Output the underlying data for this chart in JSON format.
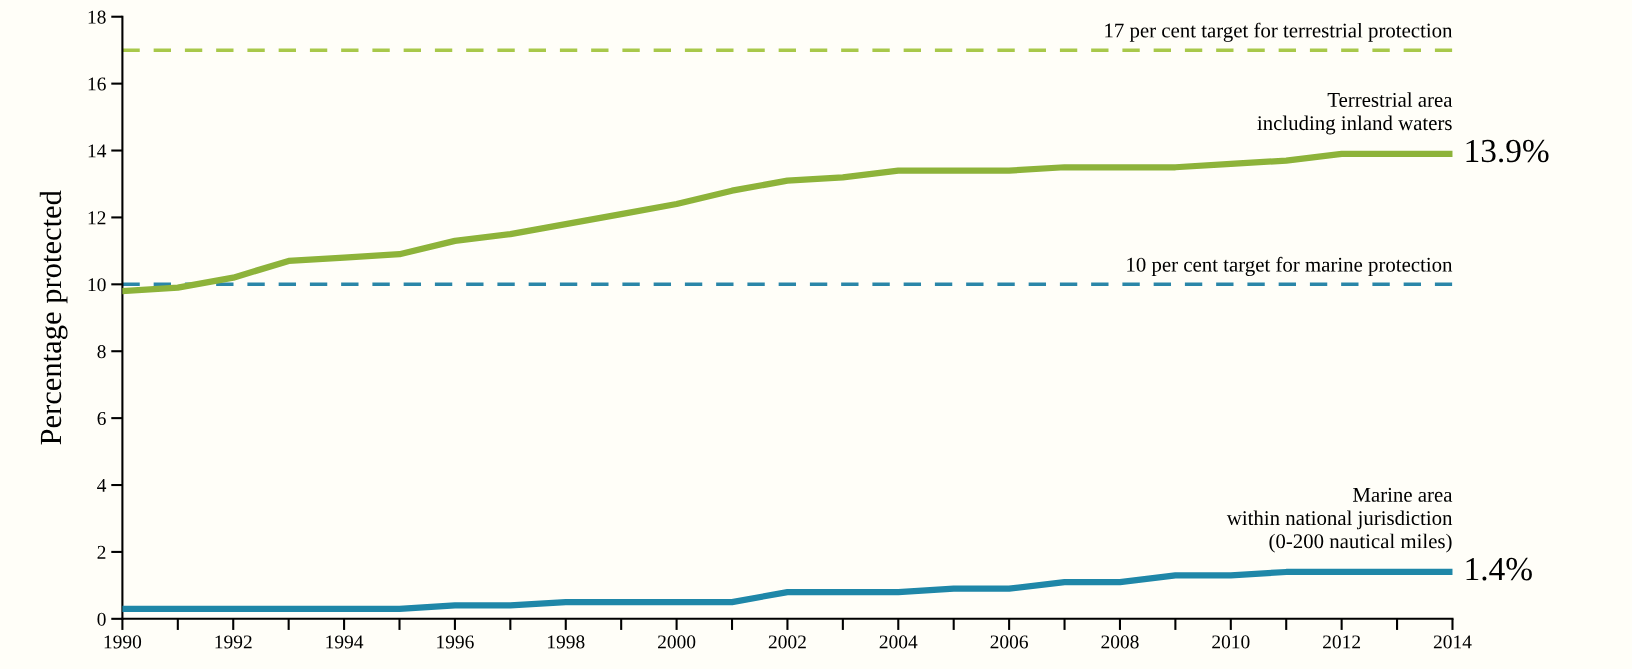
{
  "chart_data": {
    "type": "line",
    "ylabel": "Percentage protected",
    "x": [
      1990,
      1991,
      1992,
      1993,
      1994,
      1995,
      1996,
      1997,
      1998,
      1999,
      2000,
      2001,
      2002,
      2003,
      2004,
      2005,
      2006,
      2007,
      2008,
      2009,
      2010,
      2011,
      2012,
      2013,
      2014
    ],
    "series": [
      {
        "name": "Terrestrial area\nincluding inland waters",
        "color": "#8db33a",
        "values": [
          9.8,
          9.9,
          10.2,
          10.7,
          10.8,
          10.9,
          11.3,
          11.5,
          11.8,
          12.1,
          12.4,
          12.8,
          13.1,
          13.2,
          13.4,
          13.4,
          13.4,
          13.5,
          13.5,
          13.5,
          13.6,
          13.7,
          13.9,
          13.9,
          13.9
        ]
      },
      {
        "name": "Marine area\nwithin national jurisdiction\n(0-200 nautical miles)",
        "color": "#1f87a8",
        "values": [
          0.3,
          0.3,
          0.3,
          0.3,
          0.3,
          0.3,
          0.4,
          0.4,
          0.5,
          0.5,
          0.5,
          0.5,
          0.8,
          0.8,
          0.8,
          0.9,
          0.9,
          1.1,
          1.1,
          1.3,
          1.3,
          1.4,
          1.4,
          1.4,
          1.4
        ]
      }
    ],
    "annotations": [
      {
        "text": "13.9%",
        "x": 2014,
        "y": 13.9
      },
      {
        "text": "1.4%",
        "x": 2014,
        "y": 1.4
      }
    ],
    "ref_lines": [
      {
        "axis": "y",
        "value": 17,
        "label": "17 per cent target for terrestrial protection",
        "color": "#a8c84a",
        "line_style": "dashed"
      },
      {
        "axis": "y",
        "value": 10,
        "label": "10 per cent target for marine protection",
        "color": "#2a86a8",
        "line_style": "dashed"
      }
    ],
    "xlim": [
      1990,
      2014
    ],
    "xticks": [
      1990,
      {
        "value": 1991,
        "label": null
      },
      1992,
      {
        "value": 1993,
        "label": null
      },
      1994,
      {
        "value": 1995,
        "label": null
      },
      1996,
      {
        "value": 1997,
        "label": null
      },
      1998,
      {
        "value": 1999,
        "label": null
      },
      2000,
      {
        "value": 2001,
        "label": null
      },
      2002,
      {
        "value": 2003,
        "label": null
      },
      2004,
      {
        "value": 2005,
        "label": null
      },
      2006,
      {
        "value": 2007,
        "label": null
      },
      2008,
      {
        "value": 2009,
        "label": null
      },
      2010,
      {
        "value": 2011,
        "label": null
      },
      2012,
      {
        "value": 2013,
        "label": null
      },
      2014
    ],
    "ylim": [
      0,
      18
    ],
    "yticks": [
      0,
      2,
      4,
      6,
      8,
      10,
      12,
      14,
      16,
      18
    ],
    "grid": false,
    "legend": false,
    "marker": "none",
    "line_style": "solid"
  }
}
